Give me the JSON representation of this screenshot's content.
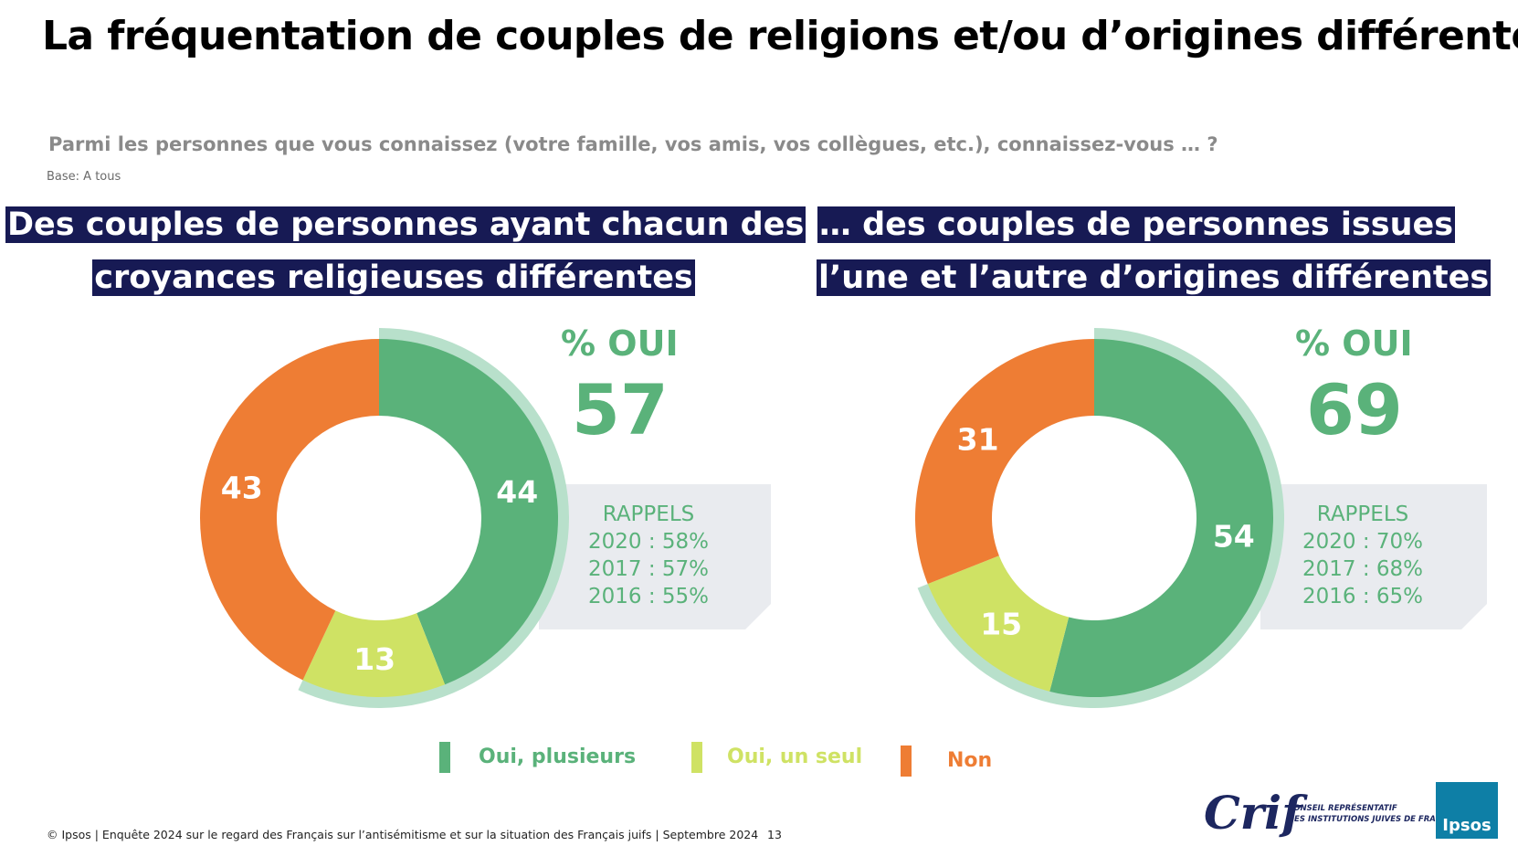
{
  "title": "La fréquentation de couples de religions et/ou d’origines différentes",
  "question": "Parmi les personnes que vous connaissez (votre famille, vos amis, vos collègues, etc.), connaissez-vous … ?",
  "base": "Base: A tous",
  "colors": {
    "oui_plusieurs": "#5ab27a",
    "oui_un_seul": "#cfe264",
    "non": "#ee7d34",
    "halo": "#b8e0cb",
    "heading_bg": "#171a54",
    "rappels_bg": "#e9ebef"
  },
  "left": {
    "heading_line1": "Des couples de personnes ayant chacun des",
    "heading_line2": "croyances religieuses différentes",
    "oui_label": "% OUI",
    "oui_total": "57",
    "rappels": {
      "title": "RAPPELS",
      "line1": "2020 : 58%",
      "line2": "2017 : 57%",
      "line3": "2016 : 55%"
    }
  },
  "right": {
    "heading_line1": "… des couples de personnes issues",
    "heading_line2": "l’une et l’autre d’origines différentes",
    "oui_label": "% OUI",
    "oui_total": "69",
    "rappels": {
      "title": "RAPPELS",
      "line1": "2020 : 70%",
      "line2": "2017 : 68%",
      "line3": "2016 : 65%"
    }
  },
  "chart_data": [
    {
      "type": "pie",
      "categories": [
        "Oui, plusieurs",
        "Oui, un seul",
        "Non"
      ],
      "values": [
        44,
        13,
        43
      ]
    },
    {
      "type": "pie",
      "categories": [
        "Oui, plusieurs",
        "Oui, un seul",
        "Non"
      ],
      "values": [
        54,
        15,
        31
      ]
    }
  ],
  "legend": {
    "item1": "Oui, plusieurs",
    "item2": "Oui, un seul",
    "item3": "Non"
  },
  "footer": "© Ipsos | Enquête 2024 sur le regard des Français sur l’antisémitisme et sur la situation des Français juifs | Septembre 2024",
  "page_number": "13",
  "crif_logo": {
    "word": "Crif",
    "sub_line1": "CONSEIL REPRÉSENTATIF",
    "sub_line2": "DES INSTITUTIONS JUIVES DE FRANCE"
  },
  "ipsos_logo": "Ipsos"
}
